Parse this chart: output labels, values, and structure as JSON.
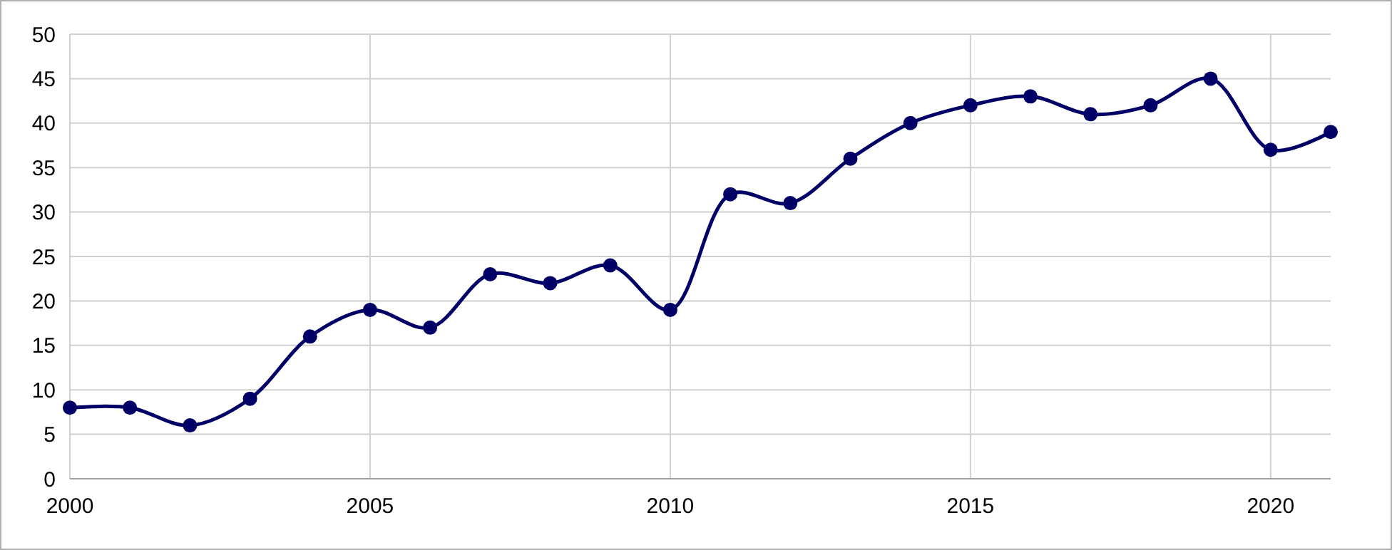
{
  "chart_data": {
    "type": "line",
    "x": [
      2000,
      2001,
      2002,
      2003,
      2004,
      2005,
      2006,
      2007,
      2008,
      2009,
      2010,
      2011,
      2012,
      2013,
      2014,
      2015,
      2016,
      2017,
      2018,
      2019,
      2020,
      2021
    ],
    "series": [
      {
        "color": "#000066",
        "values": [
          8,
          8,
          6,
          9,
          16,
          19,
          17,
          23,
          22,
          24,
          19,
          32,
          31,
          36,
          40,
          42,
          43,
          41,
          42,
          45,
          37,
          39
        ]
      }
    ],
    "xlim": [
      2000,
      2021
    ],
    "xticks": [
      2000,
      2005,
      2010,
      2015,
      2020
    ],
    "ylim": [
      0,
      50
    ],
    "yticks": [
      0,
      5,
      10,
      15,
      20,
      25,
      30,
      35,
      40,
      45,
      50
    ],
    "grid": true,
    "marker": "circle",
    "line_style": "solid"
  }
}
